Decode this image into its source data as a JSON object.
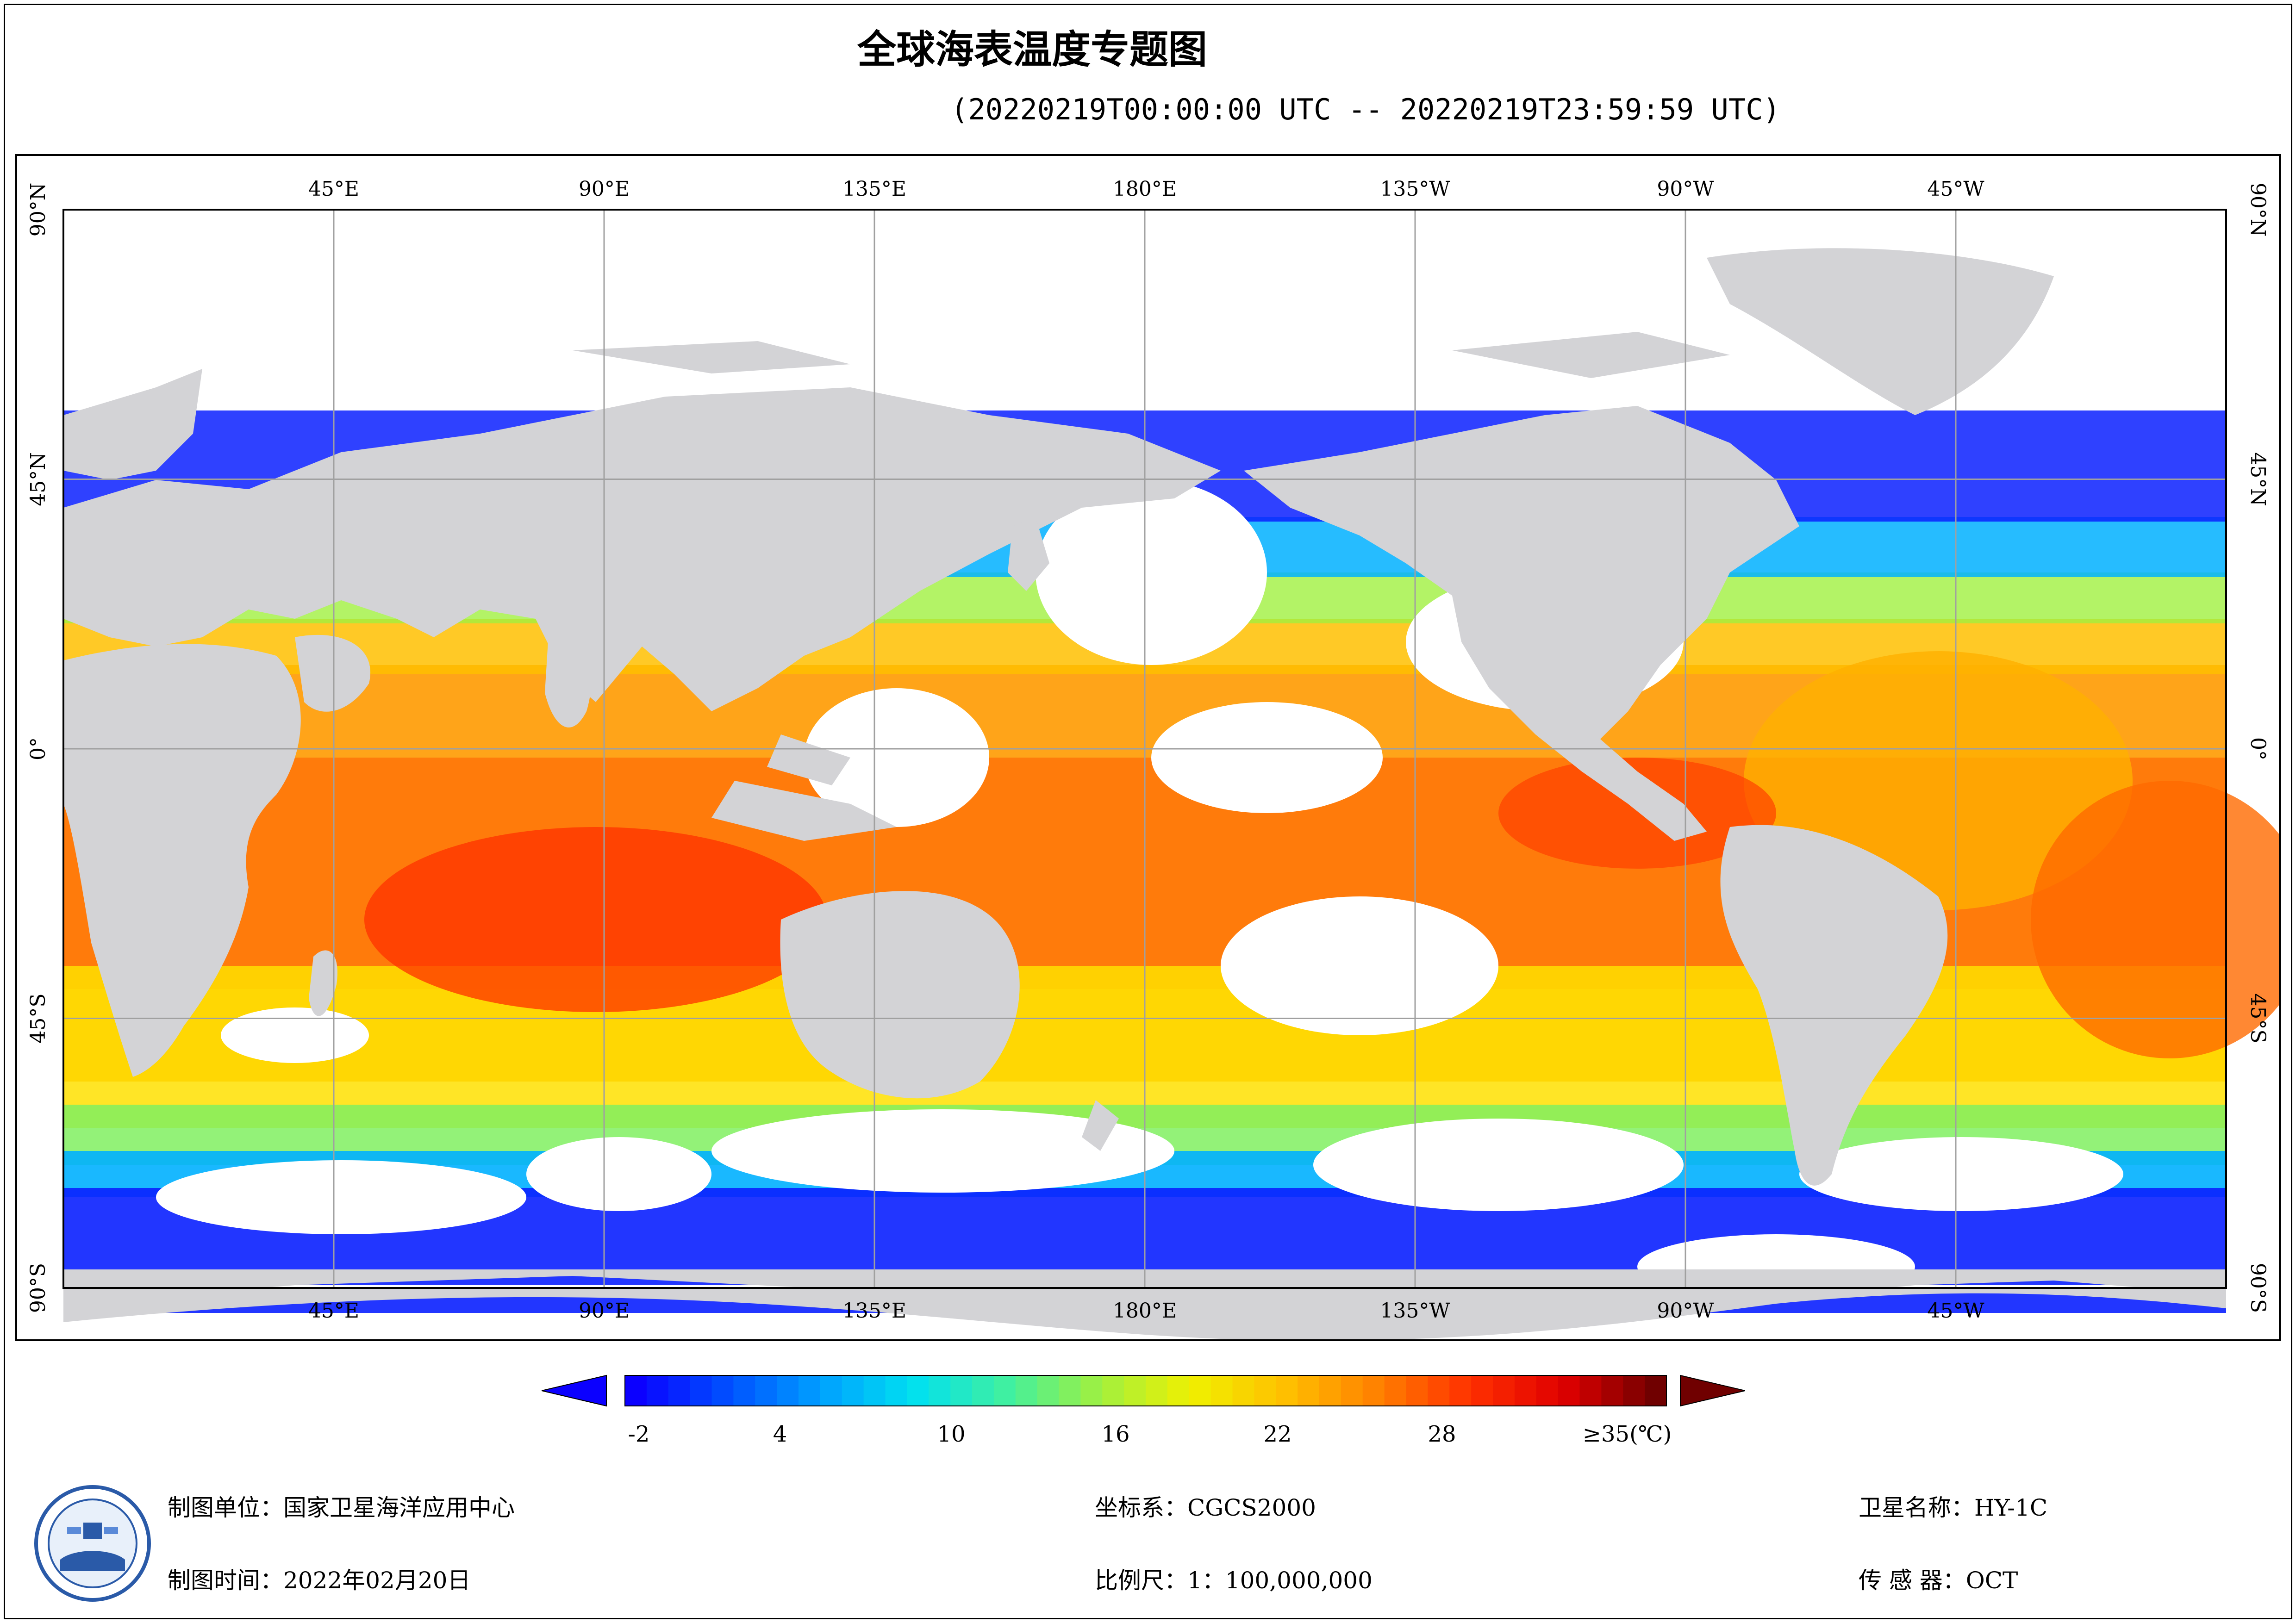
{
  "title": "全球海表温度专题图",
  "subtitle": "(20220219T00:00:00 UTC -- 20220219T23:59:59 UTC)",
  "map": {
    "top_lon_labels": [
      "45°E",
      "90°E",
      "135°E",
      "180°E",
      "135°W",
      "90°W",
      "45°W"
    ],
    "bottom_lon_labels": [
      "45°E",
      "90°E",
      "135°E",
      "180°E",
      "135°W",
      "90°W",
      "45°W"
    ],
    "left_lat_labels": [
      "90°N",
      "45°N",
      "0°",
      "45°S",
      "90°S"
    ],
    "right_lat_labels": [
      "90°N",
      "45°N",
      "0°",
      "45°S",
      "90°S"
    ],
    "colors": {
      "land": "#d3d3d6",
      "cloud": "#ffffff",
      "grid": "#a0a0a0"
    }
  },
  "colorbar": {
    "tick_labels": [
      "-2",
      "4",
      "10",
      "16",
      "22",
      "28",
      "≥35(℃)"
    ],
    "colors": [
      "#0b00ff",
      "#0050ff",
      "#00a0ff",
      "#00e0f0",
      "#40f0a0",
      "#a0f040",
      "#f0f000",
      "#ffc000",
      "#ff8000",
      "#ff3000",
      "#e00000",
      "#700000"
    ]
  },
  "footer": {
    "unit": "制图单位：国家卫星海洋应用中心",
    "time": "制图时间：2022年02月20日",
    "coord": "坐标系：CGCS2000",
    "scale": "比例尺：1：100,000,000",
    "satellite": "卫星名称：HY-1C",
    "sensor": "传  感  器：OCT"
  }
}
